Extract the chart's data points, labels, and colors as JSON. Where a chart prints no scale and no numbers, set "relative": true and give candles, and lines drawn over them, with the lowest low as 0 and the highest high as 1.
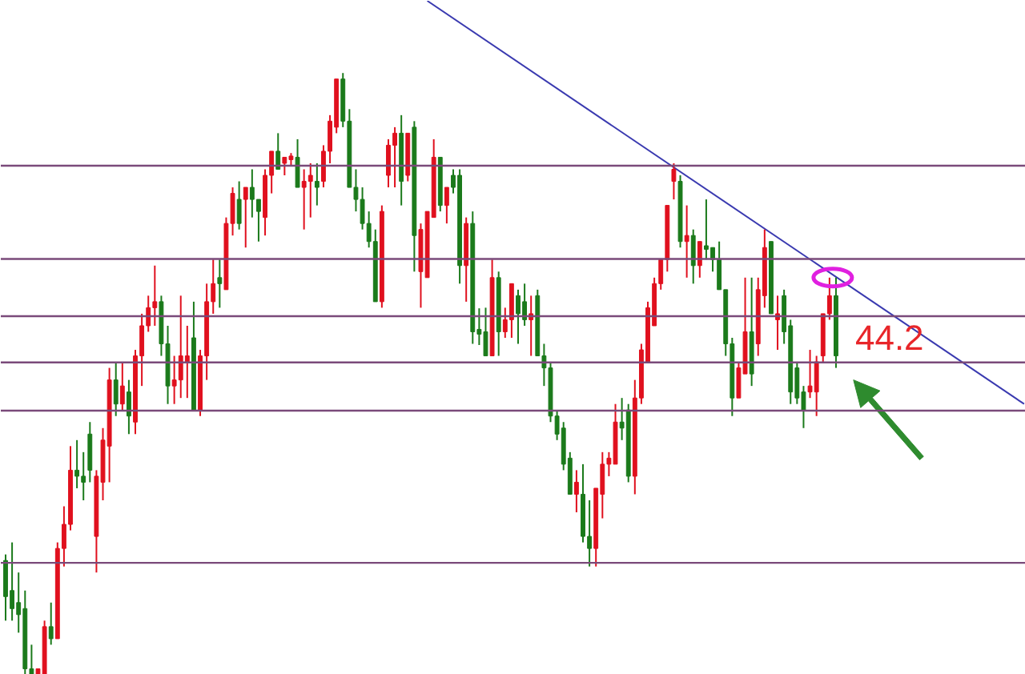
{
  "chart_data": {
    "type": "candlestick",
    "relative": true,
    "categories": [
      null,
      null,
      null,
      null,
      null,
      null,
      null,
      null,
      null,
      null,
      null,
      null,
      null,
      null,
      null,
      null,
      null,
      null,
      null,
      null,
      null,
      null,
      null,
      null,
      null,
      null,
      null,
      null,
      null,
      null,
      null,
      null,
      null,
      null,
      null,
      null,
      null,
      null,
      null,
      null,
      null,
      null,
      null,
      null,
      null,
      null,
      null,
      null,
      null,
      null,
      null,
      null,
      null,
      null,
      null,
      null,
      null,
      null,
      null,
      null,
      null,
      null,
      null,
      null,
      null,
      null,
      null,
      null,
      null,
      null,
      null,
      null,
      null,
      null,
      null,
      null,
      null,
      null,
      null,
      null,
      null,
      null,
      null,
      null,
      null,
      null,
      null,
      null,
      null,
      null,
      null,
      null,
      null,
      null,
      null,
      null,
      null,
      null,
      null,
      null,
      null,
      null,
      null,
      null,
      null,
      null,
      null,
      null,
      null,
      null,
      null,
      null,
      null,
      null,
      null,
      null,
      null,
      null,
      null,
      null,
      null,
      null,
      null,
      null,
      null,
      null,
      null,
      null,
      null,
      null,
      null,
      null,
      null,
      null,
      null,
      null,
      null,
      null,
      null,
      null,
      null,
      null,
      null,
      null,
      null,
      null,
      null,
      null,
      null,
      null,
      null,
      null,
      null,
      null,
      null,
      null,
      null,
      null
    ],
    "ohlc": [
      [
        0.19,
        0.2,
        0.09,
        0.13
      ],
      [
        0.14,
        0.22,
        0.09,
        0.11
      ],
      [
        0.12,
        0.17,
        0.07,
        0.1
      ],
      [
        0.11,
        0.14,
        0.0,
        0.01
      ],
      [
        0.01,
        0.05,
        0.0,
        0.0
      ],
      [
        0.0,
        0.01,
        0.0,
        0.01
      ],
      [
        0.0,
        0.09,
        0.0,
        0.08
      ],
      [
        0.08,
        0.12,
        0.05,
        0.06
      ],
      [
        0.06,
        0.22,
        0.06,
        0.21
      ],
      [
        0.21,
        0.28,
        0.18,
        0.25
      ],
      [
        0.25,
        0.38,
        0.24,
        0.34
      ],
      [
        0.34,
        0.39,
        0.31,
        0.33
      ],
      [
        0.33,
        0.37,
        0.29,
        0.32
      ],
      [
        0.4,
        0.42,
        0.32,
        0.34
      ],
      [
        0.23,
        0.34,
        0.17,
        0.33
      ],
      [
        0.32,
        0.41,
        0.29,
        0.39
      ],
      [
        0.38,
        0.51,
        0.32,
        0.49
      ],
      [
        0.49,
        0.52,
        0.43,
        0.45
      ],
      [
        0.45,
        0.52,
        0.44,
        0.48
      ],
      [
        0.47,
        0.49,
        0.4,
        0.43
      ],
      [
        0.42,
        0.54,
        0.4,
        0.53
      ],
      [
        0.53,
        0.6,
        0.48,
        0.58
      ],
      [
        0.58,
        0.63,
        0.57,
        0.61
      ],
      [
        0.61,
        0.68,
        0.58,
        0.62
      ],
      [
        0.62,
        0.63,
        0.53,
        0.55
      ],
      [
        0.55,
        0.58,
        0.45,
        0.48
      ],
      [
        0.48,
        0.53,
        0.45,
        0.49
      ],
      [
        0.49,
        0.63,
        0.46,
        0.53
      ],
      [
        0.52,
        0.58,
        0.46,
        0.53
      ],
      [
        0.56,
        0.62,
        0.44,
        0.44
      ],
      [
        0.44,
        0.54,
        0.43,
        0.53
      ],
      [
        0.53,
        0.65,
        0.49,
        0.62
      ],
      [
        0.62,
        0.69,
        0.6,
        0.65
      ],
      [
        0.66,
        0.69,
        0.61,
        0.65
      ],
      [
        0.64,
        0.76,
        0.64,
        0.75
      ],
      [
        0.75,
        0.81,
        0.73,
        0.8
      ],
      [
        0.79,
        0.82,
        0.74,
        0.75
      ],
      [
        0.79,
        0.81,
        0.71,
        0.81
      ],
      [
        0.81,
        0.84,
        0.76,
        0.79
      ],
      [
        0.79,
        0.79,
        0.72,
        0.77
      ],
      [
        0.76,
        0.84,
        0.73,
        0.83
      ],
      [
        0.83,
        0.87,
        0.8,
        0.87
      ],
      [
        0.87,
        0.9,
        0.84,
        0.84
      ],
      [
        0.85,
        0.86,
        0.83,
        0.86
      ],
      [
        0.856,
        0.867,
        0.846,
        0.862
      ],
      [
        0.86,
        0.89,
        0.81,
        0.81
      ],
      [
        0.81,
        0.84,
        0.74,
        0.82
      ],
      [
        0.82,
        0.85,
        0.76,
        0.83
      ],
      [
        0.82,
        0.85,
        0.78,
        0.81
      ],
      [
        0.82,
        0.88,
        0.81,
        0.87
      ],
      [
        0.87,
        0.93,
        0.85,
        0.92
      ],
      [
        0.91,
        0.99,
        0.9,
        0.99
      ],
      [
        0.99,
        1.0,
        0.91,
        0.92
      ],
      [
        0.92,
        0.94,
        0.81,
        0.81
      ],
      [
        0.81,
        0.84,
        0.77,
        0.79
      ],
      [
        0.79,
        0.81,
        0.74,
        0.75
      ],
      [
        0.75,
        0.77,
        0.71,
        0.72
      ],
      [
        0.72,
        0.74,
        0.62,
        0.62
      ],
      [
        0.62,
        0.78,
        0.61,
        0.77
      ],
      [
        0.83,
        0.89,
        0.81,
        0.88
      ],
      [
        0.88,
        0.91,
        0.81,
        0.9
      ],
      [
        0.9,
        0.93,
        0.78,
        0.82
      ],
      [
        0.83,
        0.9,
        0.82,
        0.9
      ],
      [
        0.91,
        0.92,
        0.67,
        0.73
      ],
      [
        0.67,
        0.75,
        0.61,
        0.74
      ],
      [
        0.66,
        0.77,
        0.66,
        0.77
      ],
      [
        0.76,
        0.89,
        0.76,
        0.86
      ],
      [
        0.86,
        0.86,
        0.77,
        0.78
      ],
      [
        0.78,
        0.81,
        0.75,
        0.81
      ],
      [
        0.83,
        0.84,
        0.8,
        0.81
      ],
      [
        0.83,
        0.84,
        0.65,
        0.68
      ],
      [
        0.68,
        0.76,
        0.62,
        0.75
      ],
      [
        0.75,
        0.77,
        0.55,
        0.57
      ],
      [
        0.574,
        0.609,
        0.548,
        0.566
      ],
      [
        0.57,
        0.61,
        0.53,
        0.53
      ],
      [
        0.53,
        0.69,
        0.53,
        0.66
      ],
      [
        0.66,
        0.67,
        0.53,
        0.57
      ],
      [
        0.57,
        0.61,
        0.56,
        0.59
      ],
      [
        0.59,
        0.65,
        0.56,
        0.65
      ],
      [
        0.63,
        0.64,
        0.55,
        0.6
      ],
      [
        0.62,
        0.65,
        0.58,
        0.59
      ],
      [
        0.59,
        0.63,
        0.53,
        0.6
      ],
      [
        0.63,
        0.64,
        0.53,
        0.53
      ],
      [
        0.53,
        0.55,
        0.48,
        0.51
      ],
      [
        0.51,
        0.52,
        0.42,
        0.43
      ],
      [
        0.43,
        0.44,
        0.39,
        0.4
      ],
      [
        0.41,
        0.42,
        0.34,
        0.35
      ],
      [
        0.36,
        0.37,
        0.3,
        0.3
      ],
      [
        0.3,
        0.34,
        0.27,
        0.32
      ],
      [
        0.3,
        0.35,
        0.22,
        0.23
      ],
      [
        0.23,
        0.29,
        0.18,
        0.21
      ],
      [
        0.21,
        0.31,
        0.18,
        0.31
      ],
      [
        0.3,
        0.37,
        0.26,
        0.35
      ],
      [
        0.35,
        0.37,
        0.33,
        0.36
      ],
      [
        0.35,
        0.45,
        0.35,
        0.42
      ],
      [
        0.42,
        0.46,
        0.39,
        0.41
      ],
      [
        0.44,
        0.45,
        0.32,
        0.33
      ],
      [
        0.33,
        0.49,
        0.3,
        0.46
      ],
      [
        0.46,
        0.55,
        0.45,
        0.54
      ],
      [
        0.52,
        0.62,
        0.52,
        0.61
      ],
      [
        0.58,
        0.66,
        0.58,
        0.65
      ],
      [
        0.65,
        0.69,
        0.64,
        0.69
      ],
      [
        0.69,
        0.78,
        0.67,
        0.78
      ],
      [
        0.82,
        0.85,
        0.79,
        0.84
      ],
      [
        0.82,
        0.83,
        0.71,
        0.72
      ],
      [
        0.72,
        0.78,
        0.66,
        0.73
      ],
      [
        0.73,
        0.74,
        0.65,
        0.68
      ],
      [
        0.68,
        0.72,
        0.66,
        0.72
      ],
      [
        0.713,
        0.79,
        0.69,
        0.707
      ],
      [
        0.71,
        0.71,
        0.67,
        0.69
      ],
      [
        0.69,
        0.72,
        0.64,
        0.64
      ],
      [
        0.64,
        0.64,
        0.53,
        0.55
      ],
      [
        0.55,
        0.56,
        0.43,
        0.46
      ],
      [
        0.46,
        0.52,
        0.46,
        0.51
      ],
      [
        0.5,
        0.66,
        0.5,
        0.57
      ],
      [
        0.57,
        0.66,
        0.48,
        0.5
      ],
      [
        0.55,
        0.66,
        0.53,
        0.64
      ],
      [
        0.63,
        0.74,
        0.61,
        0.71
      ],
      [
        0.72,
        0.72,
        0.6,
        0.6
      ],
      [
        0.59,
        0.63,
        0.54,
        0.6
      ],
      [
        0.63,
        0.64,
        0.55,
        0.57
      ],
      [
        0.58,
        0.59,
        0.45,
        0.47
      ],
      [
        0.51,
        0.52,
        0.45,
        0.46
      ],
      [
        0.47,
        0.48,
        0.41,
        0.44
      ],
      [
        0.47,
        0.54,
        0.46,
        0.48
      ],
      [
        0.47,
        0.53,
        0.43,
        0.52
      ],
      [
        0.53,
        0.6,
        0.52,
        0.6
      ],
      [
        0.6,
        0.66,
        0.59,
        0.63
      ],
      [
        0.63,
        0.66,
        0.51,
        0.53
      ],
      null,
      null,
      null,
      null,
      null,
      null,
      null,
      null,
      null,
      null,
      null,
      null,
      null,
      null,
      null,
      null,
      null,
      null,
      null,
      null,
      null,
      null,
      null,
      null,
      null,
      null,
      null,
      null,
      null
    ],
    "colors": [
      "#1b7a1b",
      "#1b7a1b",
      "#1b7a1b",
      "#1b7a1b",
      "#1b7a1b",
      "#e0101e",
      "#e0101e",
      "#1b7a1b",
      "#e0101e",
      "#e0101e",
      "#e0101e",
      "#1b7a1b",
      "#1b7a1b",
      "#1b7a1b",
      "#e0101e",
      "#e0101e",
      "#e0101e",
      "#1b7a1b",
      "#e0101e",
      "#1b7a1b",
      "#e0101e",
      "#e0101e",
      "#e0101e",
      "#e0101e",
      "#1b7a1b",
      "#1b7a1b",
      "#e0101e",
      "#e0101e",
      "#e0101e",
      "#1b7a1b",
      "#e0101e",
      "#e0101e",
      "#e0101e",
      "#1b7a1b",
      "#e0101e",
      "#e0101e",
      "#1b7a1b",
      "#e0101e",
      "#1b7a1b",
      "#1b7a1b",
      "#e0101e",
      "#e0101e",
      "#1b7a1b",
      "#e0101e",
      "#e0101e",
      "#1b7a1b",
      "#e0101e",
      "#e0101e",
      "#1b7a1b",
      "#e0101e",
      "#e0101e",
      "#e0101e",
      "#1b7a1b",
      "#1b7a1b",
      "#1b7a1b",
      "#1b7a1b",
      "#1b7a1b",
      "#1b7a1b",
      "#e0101e",
      "#e0101e",
      "#e0101e",
      "#1b7a1b",
      "#e0101e",
      "#1b7a1b",
      "#e0101e",
      "#e0101e",
      "#e0101e",
      "#1b7a1b",
      "#e0101e",
      "#1b7a1b",
      "#1b7a1b",
      "#e0101e",
      "#1b7a1b",
      "#1b7a1b",
      "#1b7a1b",
      "#e0101e",
      "#1b7a1b",
      "#e0101e",
      "#e0101e",
      "#1b7a1b",
      "#1b7a1b",
      "#e0101e",
      "#1b7a1b",
      "#1b7a1b",
      "#1b7a1b",
      "#1b7a1b",
      "#1b7a1b",
      "#1b7a1b",
      "#e0101e",
      "#1b7a1b",
      "#1b7a1b",
      "#e0101e",
      "#e0101e",
      "#e0101e",
      "#e0101e",
      "#1b7a1b",
      "#1b7a1b",
      "#e0101e",
      "#e0101e",
      "#e0101e",
      "#e0101e",
      "#e0101e",
      "#e0101e",
      "#e0101e",
      "#1b7a1b",
      "#e0101e",
      "#1b7a1b",
      "#e0101e",
      "#1b7a1b",
      "#1b7a1b",
      "#1b7a1b",
      "#1b7a1b",
      "#1b7a1b",
      "#e0101e",
      "#e0101e",
      "#1b7a1b",
      "#e0101e",
      "#e0101e",
      "#1b7a1b",
      "#e0101e",
      "#1b7a1b",
      "#1b7a1b",
      "#1b7a1b",
      "#1b7a1b",
      "#e0101e",
      "#e0101e",
      "#e0101e",
      "#e0101e",
      "#1b7a1b",
      null,
      null,
      null,
      null,
      null,
      null,
      null,
      null,
      null,
      null,
      null,
      null,
      null,
      null,
      null,
      null,
      null,
      null,
      null,
      null,
      null,
      null,
      null,
      null,
      null,
      null,
      null,
      null,
      null
    ],
    "series": [
      {
        "type": "line",
        "color": "#3a3ab0",
        "values": [
          null,
          null,
          null,
          null,
          null,
          null,
          null,
          null,
          null,
          null,
          null,
          null,
          null,
          null,
          null,
          null,
          null,
          null,
          null,
          null,
          null,
          null,
          null,
          null,
          null,
          null,
          null,
          null,
          null,
          null,
          null,
          null,
          null,
          null,
          null,
          null,
          null,
          null,
          null,
          null,
          null,
          null,
          null,
          null,
          null,
          null,
          null,
          null,
          null,
          null,
          null,
          null,
          null,
          null,
          null,
          null,
          null,
          null,
          null,
          null,
          null,
          null,
          null,
          null,
          null,
          1.12,
          null,
          null,
          null,
          null,
          null,
          null,
          null,
          null,
          null,
          null,
          null,
          null,
          null,
          null,
          null,
          null,
          null,
          null,
          null,
          null,
          null,
          null,
          null,
          null,
          null,
          null,
          null,
          null,
          null,
          null,
          null,
          null,
          null,
          null,
          null,
          null,
          null,
          null,
          null,
          null,
          null,
          null,
          null,
          null,
          null,
          null,
          null,
          null,
          null,
          null,
          null,
          null,
          null,
          null,
          null,
          null,
          null,
          null,
          null,
          null,
          null,
          null,
          null,
          null,
          null,
          null,
          null,
          null,
          null,
          null,
          null,
          null,
          null,
          null,
          null,
          null,
          null,
          null,
          null,
          null,
          null,
          null,
          null,
          null,
          null,
          null,
          null,
          null,
          null,
          null,
          null,
          0.45
        ]
      }
    ],
    "ref_lines": [
      {
        "axis": "y",
        "value": 0.846,
        "color": "#7a4a7a"
      },
      {
        "axis": "y",
        "value": 0.691,
        "color": "#7a4a7a"
      },
      {
        "axis": "y",
        "value": 0.596,
        "color": "#7a4a7a"
      },
      {
        "axis": "y",
        "value": 0.519,
        "color": "#7a4a7a"
      },
      {
        "axis": "y",
        "value": 0.439,
        "color": "#7a4a7a"
      },
      {
        "axis": "y",
        "value": 0.186,
        "color": "#7a4a7a"
      }
    ],
    "annotations": [
      "44.2"
    ]
  }
}
